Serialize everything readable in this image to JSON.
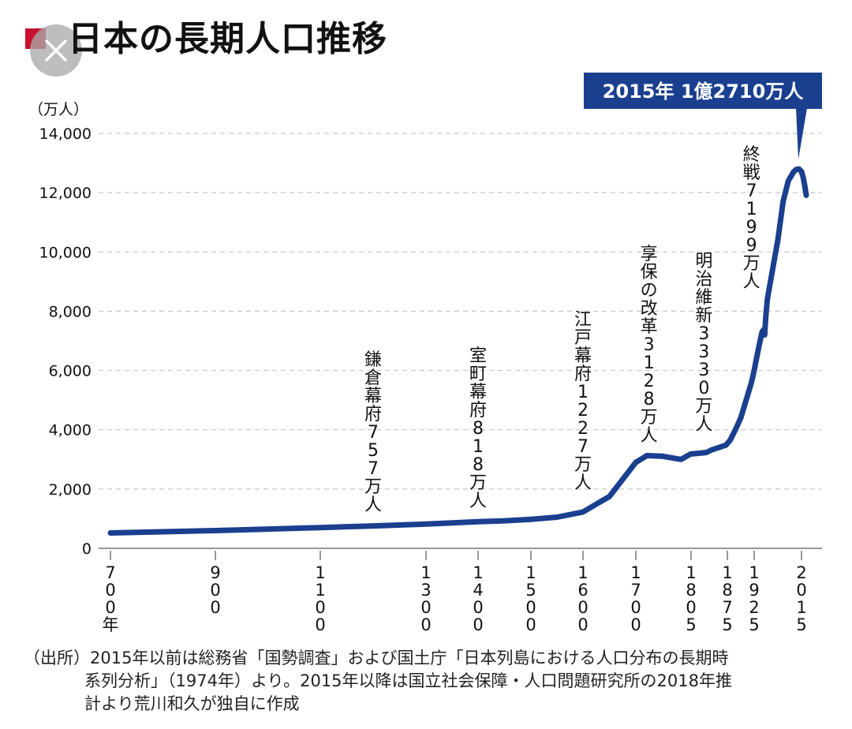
{
  "title": "日本の長期人口推移",
  "close_icon": "close-icon",
  "colors": {
    "line": "#1a3f8f",
    "callout": "#1a3f8f",
    "accent": "#c8102e",
    "grid": "#bbbbbb"
  },
  "chart_data": {
    "type": "line",
    "title": "日本の長期人口推移",
    "ylabel": "（万人）",
    "ylim": [
      0,
      14000
    ],
    "yticks": [
      0,
      2000,
      4000,
      6000,
      8000,
      10000,
      12000,
      14000
    ],
    "ytick_labels": [
      "0",
      "2,000",
      "4,000",
      "6,000",
      "8,000",
      "10,000",
      "12,000",
      "14,000"
    ],
    "grid": true,
    "xticks": [
      {
        "year": 700,
        "label": "700年"
      },
      {
        "year": 900,
        "label": "900"
      },
      {
        "year": 1100,
        "label": "1100"
      },
      {
        "year": 1300,
        "label": "1300"
      },
      {
        "year": 1400,
        "label": "1400"
      },
      {
        "year": 1500,
        "label": "1500"
      },
      {
        "year": 1600,
        "label": "1600"
      },
      {
        "year": 1700,
        "label": "1700"
      },
      {
        "year": 1805,
        "label": "1805"
      },
      {
        "year": 1875,
        "label": "1875"
      },
      {
        "year": 1925,
        "label": "1925"
      },
      {
        "year": 2015,
        "label": "2015"
      }
    ],
    "series": [
      {
        "x": [
          700,
          800,
          900,
          1000,
          1100,
          1150,
          1200,
          1300,
          1400,
          1450,
          1500,
          1550,
          1600,
          1650,
          1700,
          1721,
          1750,
          1786,
          1804,
          1834,
          1846,
          1872,
          1880,
          1890,
          1900,
          1910,
          1920,
          1925,
          1930,
          1935,
          1940,
          1944,
          1945,
          1947,
          1950,
          1960,
          1970,
          1980,
          1990,
          2000,
          2005,
          2010,
          2015,
          2020,
          2025,
          2030
        ],
        "y": [
          520,
          560,
          600,
          650,
          700,
          730,
          757,
          818,
          900,
          930,
          980,
          1050,
          1227,
          1750,
          2900,
          3128,
          3110,
          3000,
          3180,
          3230,
          3330,
          3480,
          3640,
          4000,
          4400,
          5000,
          5600,
          6000,
          6450,
          6900,
          7300,
          7400,
          7199,
          7800,
          8400,
          9400,
          10400,
          11700,
          12400,
          12700,
          12780,
          12800,
          12710,
          12530,
          12250,
          11910
        ]
      }
    ],
    "annotations": [
      {
        "year": 1200,
        "text": "鎌倉幕府757万人"
      },
      {
        "year": 1400,
        "text": "室町幕府818万人"
      },
      {
        "year": 1600,
        "text": "江戸幕府1227万人"
      },
      {
        "year": 1725,
        "text": "享保の改革3128万人"
      },
      {
        "year": 1830,
        "text": "明治維新3330万人"
      },
      {
        "year": 1920,
        "text": "終戦7199万人"
      }
    ],
    "callout": {
      "year": 2015,
      "text": "2015年 1億2710万人"
    }
  },
  "source_lines": [
    "（出所）2015年以前は総務省「国勢調査」および国土庁「日本列島における人口分布の長期時",
    "系列分析」（1974年）より。2015年以降は国立社会保障・人口問題研究所の2018年推",
    "計より荒川和久が独自に作成"
  ]
}
